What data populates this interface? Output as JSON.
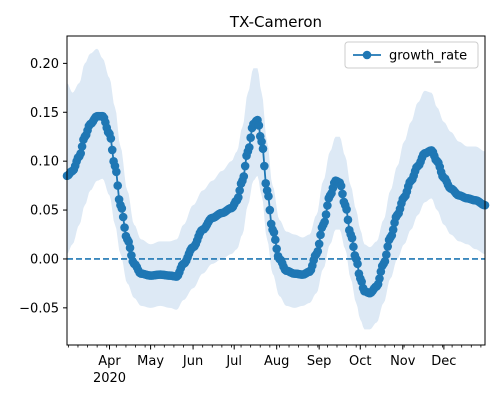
{
  "chart_data": {
    "type": "line",
    "title": "TX-Cameron",
    "xlabel": "",
    "ylabel": "",
    "x_start": "2020-03-01",
    "x_end": "2020-12-31",
    "xlim": [
      "2020-03-01",
      "2020-12-31"
    ],
    "ylim": [
      -0.088,
      0.228
    ],
    "yticks": [
      -0.05,
      0.0,
      0.05,
      0.1,
      0.15,
      0.2
    ],
    "ytick_labels": [
      "−0.05",
      "0.00",
      "0.05",
      "0.10",
      "0.15",
      "0.20"
    ],
    "xticks": [
      {
        "date": "2020-04-01",
        "label": "Apr",
        "sublabel": "2020"
      },
      {
        "date": "2020-05-01",
        "label": "May"
      },
      {
        "date": "2020-06-01",
        "label": "Jun"
      },
      {
        "date": "2020-07-01",
        "label": "Jul"
      },
      {
        "date": "2020-08-01",
        "label": "Aug"
      },
      {
        "date": "2020-09-01",
        "label": "Sep"
      },
      {
        "date": "2020-10-01",
        "label": "Oct"
      },
      {
        "date": "2020-11-01",
        "label": "Nov"
      },
      {
        "date": "2020-12-01",
        "label": "Dec"
      }
    ],
    "reference_line": {
      "y": 0.0,
      "style": "dashed"
    },
    "legend": {
      "placement": "top-right",
      "entries": [
        "growth_rate"
      ]
    },
    "series": [
      {
        "name": "growth_rate",
        "color": "#1f77b4",
        "marker": "circle",
        "band_color": "#dde9f5",
        "points": [
          {
            "x": "2020-03-01",
            "y": 0.085,
            "lo": 0.005,
            "hi": 0.18
          },
          {
            "x": "2020-03-05",
            "y": 0.09,
            "lo": 0.015,
            "hi": 0.17
          },
          {
            "x": "2020-03-10",
            "y": 0.105,
            "lo": 0.035,
            "hi": 0.18
          },
          {
            "x": "2020-03-14",
            "y": 0.125,
            "lo": 0.055,
            "hi": 0.2
          },
          {
            "x": "2020-03-18",
            "y": 0.138,
            "lo": 0.07,
            "hi": 0.21
          },
          {
            "x": "2020-03-23",
            "y": 0.146,
            "lo": 0.08,
            "hi": 0.215
          },
          {
            "x": "2020-03-27",
            "y": 0.146,
            "lo": 0.082,
            "hi": 0.205
          },
          {
            "x": "2020-04-01",
            "y": 0.128,
            "lo": 0.065,
            "hi": 0.185
          },
          {
            "x": "2020-04-05",
            "y": 0.095,
            "lo": 0.035,
            "hi": 0.155
          },
          {
            "x": "2020-04-09",
            "y": 0.055,
            "lo": 0.005,
            "hi": 0.115
          },
          {
            "x": "2020-04-14",
            "y": 0.02,
            "lo": -0.025,
            "hi": 0.07
          },
          {
            "x": "2020-04-19",
            "y": -0.005,
            "lo": -0.04,
            "hi": 0.035
          },
          {
            "x": "2020-04-24",
            "y": -0.015,
            "lo": -0.048,
            "hi": 0.02
          },
          {
            "x": "2020-05-01",
            "y": -0.017,
            "lo": -0.05,
            "hi": 0.015
          },
          {
            "x": "2020-05-08",
            "y": -0.016,
            "lo": -0.048,
            "hi": 0.018
          },
          {
            "x": "2020-05-15",
            "y": -0.017,
            "lo": -0.05,
            "hi": 0.018
          },
          {
            "x": "2020-05-20",
            "y": -0.018,
            "lo": -0.052,
            "hi": 0.02
          },
          {
            "x": "2020-05-25",
            "y": -0.005,
            "lo": -0.042,
            "hi": 0.035
          },
          {
            "x": "2020-06-01",
            "y": 0.012,
            "lo": -0.03,
            "hi": 0.055
          },
          {
            "x": "2020-06-08",
            "y": 0.03,
            "lo": -0.015,
            "hi": 0.07
          },
          {
            "x": "2020-06-15",
            "y": 0.042,
            "lo": -0.005,
            "hi": 0.08
          },
          {
            "x": "2020-06-22",
            "y": 0.047,
            "lo": 0.0,
            "hi": 0.09
          },
          {
            "x": "2020-06-29",
            "y": 0.052,
            "lo": 0.005,
            "hi": 0.1
          },
          {
            "x": "2020-07-03",
            "y": 0.06,
            "lo": 0.01,
            "hi": 0.11
          },
          {
            "x": "2020-07-07",
            "y": 0.08,
            "lo": 0.025,
            "hi": 0.135
          },
          {
            "x": "2020-07-11",
            "y": 0.11,
            "lo": 0.055,
            "hi": 0.17
          },
          {
            "x": "2020-07-15",
            "y": 0.138,
            "lo": 0.08,
            "hi": 0.195
          },
          {
            "x": "2020-07-18",
            "y": 0.142,
            "lo": 0.085,
            "hi": 0.195
          },
          {
            "x": "2020-07-21",
            "y": 0.12,
            "lo": 0.065,
            "hi": 0.17
          },
          {
            "x": "2020-07-25",
            "y": 0.07,
            "lo": 0.02,
            "hi": 0.12
          },
          {
            "x": "2020-07-29",
            "y": 0.03,
            "lo": -0.015,
            "hi": 0.075
          },
          {
            "x": "2020-08-03",
            "y": 0.0,
            "lo": -0.038,
            "hi": 0.04
          },
          {
            "x": "2020-08-08",
            "y": -0.012,
            "lo": -0.048,
            "hi": 0.028
          },
          {
            "x": "2020-08-14",
            "y": -0.015,
            "lo": -0.05,
            "hi": 0.025
          },
          {
            "x": "2020-08-20",
            "y": -0.016,
            "lo": -0.048,
            "hi": 0.022
          },
          {
            "x": "2020-08-25",
            "y": -0.013,
            "lo": -0.045,
            "hi": 0.025
          },
          {
            "x": "2020-08-30",
            "y": 0.005,
            "lo": -0.035,
            "hi": 0.045
          },
          {
            "x": "2020-09-04",
            "y": 0.035,
            "lo": -0.01,
            "hi": 0.08
          },
          {
            "x": "2020-09-09",
            "y": 0.065,
            "lo": 0.015,
            "hi": 0.11
          },
          {
            "x": "2020-09-13",
            "y": 0.08,
            "lo": 0.03,
            "hi": 0.125
          },
          {
            "x": "2020-09-16",
            "y": 0.078,
            "lo": 0.03,
            "hi": 0.125
          },
          {
            "x": "2020-09-20",
            "y": 0.055,
            "lo": 0.01,
            "hi": 0.105
          },
          {
            "x": "2020-09-24",
            "y": 0.025,
            "lo": -0.02,
            "hi": 0.075
          },
          {
            "x": "2020-09-28",
            "y": 0.0,
            "lo": -0.045,
            "hi": 0.05
          },
          {
            "x": "2020-10-01",
            "y": -0.02,
            "lo": -0.062,
            "hi": 0.03
          },
          {
            "x": "2020-10-04",
            "y": -0.033,
            "lo": -0.072,
            "hi": 0.015
          },
          {
            "x": "2020-10-08",
            "y": -0.035,
            "lo": -0.072,
            "hi": 0.012
          },
          {
            "x": "2020-10-13",
            "y": -0.028,
            "lo": -0.065,
            "hi": 0.018
          },
          {
            "x": "2020-10-18",
            "y": -0.005,
            "lo": -0.045,
            "hi": 0.04
          },
          {
            "x": "2020-10-23",
            "y": 0.022,
            "lo": -0.02,
            "hi": 0.07
          },
          {
            "x": "2020-10-28",
            "y": 0.045,
            "lo": 0.0,
            "hi": 0.095
          },
          {
            "x": "2020-11-02",
            "y": 0.063,
            "lo": 0.015,
            "hi": 0.12
          },
          {
            "x": "2020-11-07",
            "y": 0.08,
            "lo": 0.03,
            "hi": 0.14
          },
          {
            "x": "2020-11-12",
            "y": 0.095,
            "lo": 0.045,
            "hi": 0.16
          },
          {
            "x": "2020-11-17",
            "y": 0.108,
            "lo": 0.058,
            "hi": 0.172
          },
          {
            "x": "2020-11-22",
            "y": 0.111,
            "lo": 0.062,
            "hi": 0.17
          },
          {
            "x": "2020-11-26",
            "y": 0.1,
            "lo": 0.05,
            "hi": 0.155
          },
          {
            "x": "2020-12-01",
            "y": 0.083,
            "lo": 0.035,
            "hi": 0.14
          },
          {
            "x": "2020-12-06",
            "y": 0.072,
            "lo": 0.025,
            "hi": 0.13
          },
          {
            "x": "2020-12-12",
            "y": 0.065,
            "lo": 0.018,
            "hi": 0.12
          },
          {
            "x": "2020-12-18",
            "y": 0.062,
            "lo": 0.015,
            "hi": 0.115
          },
          {
            "x": "2020-12-24",
            "y": 0.06,
            "lo": 0.01,
            "hi": 0.115
          },
          {
            "x": "2020-12-31",
            "y": 0.055,
            "lo": 0.005,
            "hi": 0.11
          }
        ]
      }
    ]
  }
}
